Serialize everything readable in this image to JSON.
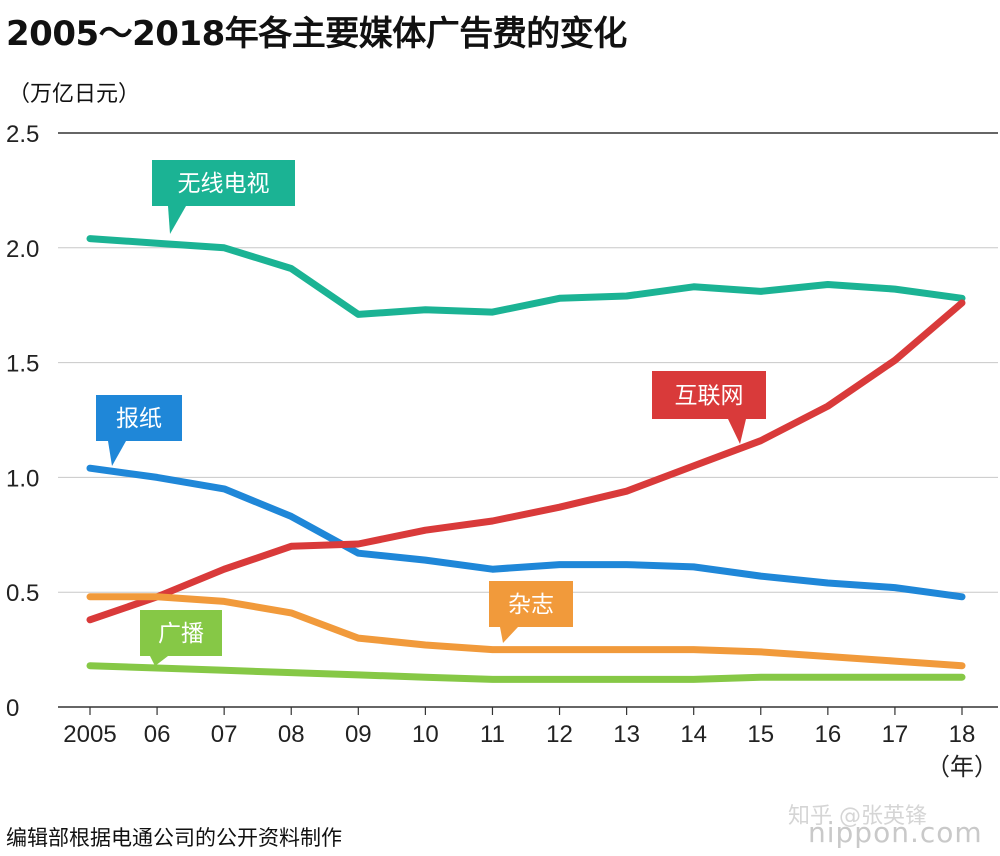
{
  "header": {
    "title": "2005～2018年各主要媒体广告费的变化",
    "unit_label": "（万亿日元）"
  },
  "footer": {
    "source": "编辑部根据电通公司的公开资料制作",
    "watermark_zhihu": "知乎 @张英锋",
    "watermark_nippon": "nippon.com"
  },
  "chart_data": {
    "type": "line",
    "title": "2005～2018年各主要媒体广告费的变化",
    "ylabel": "（万亿日元）",
    "xlabel": "（年）",
    "categories": [
      "2005",
      "06",
      "07",
      "08",
      "09",
      "10",
      "11",
      "12",
      "13",
      "14",
      "15",
      "16",
      "17",
      "18"
    ],
    "ylim": [
      0,
      2.5
    ],
    "yticks": [
      "0",
      "0.5",
      "1.0",
      "1.5",
      "2.0",
      "2.5"
    ],
    "ytick_values": [
      0,
      0.5,
      1.0,
      1.5,
      2.0,
      2.5
    ],
    "grid": true,
    "series": [
      {
        "name": "无线电视",
        "color": "#1bb394",
        "values": [
          2.04,
          2.02,
          2.0,
          1.91,
          1.71,
          1.73,
          1.72,
          1.78,
          1.79,
          1.83,
          1.81,
          1.84,
          1.82,
          1.78
        ]
      },
      {
        "name": "报纸",
        "color": "#1f87d8",
        "values": [
          1.04,
          1.0,
          0.95,
          0.83,
          0.67,
          0.64,
          0.6,
          0.62,
          0.62,
          0.61,
          0.57,
          0.54,
          0.52,
          0.48
        ]
      },
      {
        "name": "互联网",
        "color": "#d93a3a",
        "values": [
          0.38,
          0.48,
          0.6,
          0.7,
          0.71,
          0.77,
          0.81,
          0.87,
          0.94,
          1.05,
          1.16,
          1.31,
          1.51,
          1.76
        ]
      },
      {
        "name": "杂志",
        "color": "#f19a3b",
        "values": [
          0.48,
          0.48,
          0.46,
          0.41,
          0.3,
          0.27,
          0.25,
          0.25,
          0.25,
          0.25,
          0.24,
          0.22,
          0.2,
          0.18
        ]
      },
      {
        "name": "广播",
        "color": "#86c846",
        "values": [
          0.18,
          0.17,
          0.16,
          0.15,
          0.14,
          0.13,
          0.12,
          0.12,
          0.12,
          0.12,
          0.13,
          0.13,
          0.13,
          0.13
        ]
      }
    ]
  }
}
